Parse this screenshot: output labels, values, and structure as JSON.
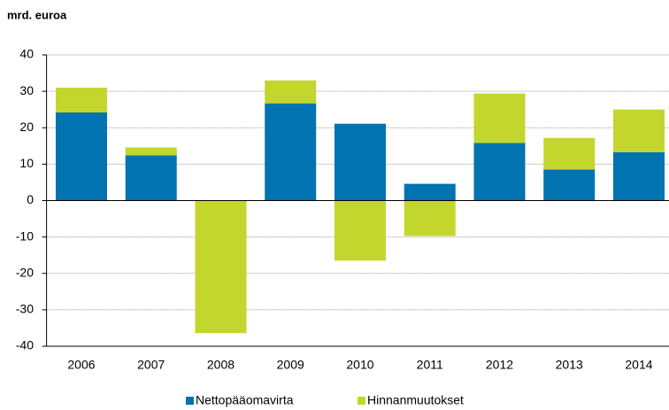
{
  "chart_data": {
    "type": "stacked_bar",
    "title": "mrd. euroa",
    "categories": [
      "2006",
      "2007",
      "2008",
      "2009",
      "2010",
      "2011",
      "2012",
      "2013",
      "2014"
    ],
    "series": [
      {
        "name": "Nettopääomavirta",
        "color": "#0073b0",
        "values": [
          24.2,
          12.4,
          0,
          26.7,
          21.1,
          4.6,
          15.8,
          8.5,
          13.3
        ]
      },
      {
        "name": "Hinnanmuutokset",
        "color": "#c3d62e",
        "values": [
          6.8,
          2.2,
          -36.4,
          6.3,
          -16.5,
          -9.7,
          13.6,
          8.7,
          11.7
        ]
      }
    ],
    "ylim": [
      -40,
      40
    ],
    "yticks": [
      -40,
      -30,
      -20,
      -10,
      0,
      10,
      20,
      30,
      40
    ],
    "grid": true,
    "legend": "bottom"
  }
}
